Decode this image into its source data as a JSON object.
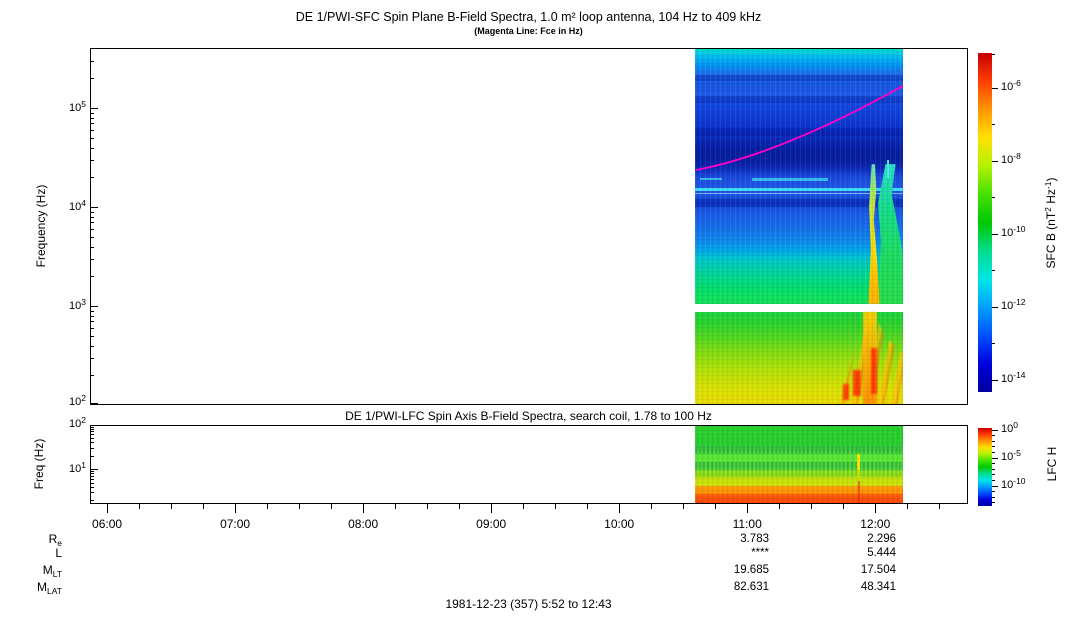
{
  "header": {
    "title": "DE 1/PWI-SFC  Spin Plane B-Field Spectra, 1.0 m² loop antenna, 104 Hz to 409 kHz",
    "subtitle": "(Magenta Line: Fce in Hz)"
  },
  "footer": {
    "text": "1981-12-23 (357) 5:52 to 12:43"
  },
  "x_axis": {
    "hour_labels": [
      "06:00",
      "07:00",
      "08:00",
      "09:00",
      "10:00",
      "11:00",
      "12:00"
    ],
    "time_range": [
      "05:52",
      "12:43"
    ],
    "minor_tick_interval_min": 15
  },
  "orbit_table": {
    "value_columns_at": [
      "11:00",
      "12:00"
    ],
    "rows": [
      {
        "label": "R",
        "sub": "e",
        "values": [
          "3.783",
          "2.296"
        ]
      },
      {
        "label": "L",
        "sub": "",
        "values": [
          "****",
          "5.444"
        ]
      },
      {
        "label": "M",
        "sub": "LT",
        "values": [
          "19.685",
          "17.504"
        ]
      },
      {
        "label": "M",
        "sub": "LAT",
        "values": [
          "82.631",
          "48.341"
        ]
      }
    ]
  },
  "colors": {
    "background": "#ffffff",
    "frame": "#000000",
    "fce_line": "#ff00c8",
    "rainbow_top_to_bottom": [
      "#c80000",
      "#ff3c00",
      "#ff9600",
      "#ffe100",
      "#b4f000",
      "#46e100",
      "#00c800",
      "#00dc8c",
      "#00e6e6",
      "#00a0ff",
      "#0050ff",
      "#0000dc",
      "#0000a0"
    ]
  },
  "chart_data": [
    {
      "type": "heatmap",
      "title": "DE 1/PWI-SFC  Spin Plane B-Field Spectra, 1.0 m² loop antenna, 104 Hz to 409 kHz",
      "subtitle": "(Magenta Line: Fce in Hz)",
      "ylabel": "Frequency (Hz)",
      "yscale": "log",
      "ylim_hz": [
        104,
        409000
      ],
      "ytick_exponents": [
        2,
        3,
        4,
        5
      ],
      "x_time_range": [
        "05:52",
        "12:43"
      ],
      "data_time_range": [
        "10:36",
        "12:13"
      ],
      "colorbar": {
        "label_parts": [
          "SFC B (nT",
          {
            "sup": "2"
          },
          " Hz",
          {
            "sup": "-1"
          },
          ")"
        ],
        "tick_exponents_labeled": [
          -6,
          -8,
          -10,
          -12,
          -14
        ],
        "tick_exponents_minor": [
          -5,
          -7,
          -9,
          -11,
          -13
        ]
      },
      "features": {
        "bands": [
          {
            "freq_hz": [
              200000,
              409000
            ],
            "appearance": "cyan band, ~1e-12 nT2/Hz"
          },
          {
            "freq_hz": [
              20000,
              200000
            ],
            "appearance": "blue, weak ~1e-13"
          },
          {
            "freq_hz": [
              30000,
              60000
            ],
            "appearance": "dark navy minimum ~1e-14"
          },
          {
            "freq_hz": [
              15000,
              19000
            ],
            "appearance": "narrow bright cyan emission lines"
          },
          {
            "freq_hz": [
              1100,
              10000
            ],
            "appearance": "blue rising to cyan-green toward low freq"
          },
          {
            "freq_hz": [
              870,
              1100
            ],
            "appearance": "white receiver gap (no data)"
          },
          {
            "freq_hz": [
              104,
              870
            ],
            "appearance": "green grading to strong yellow ~1e-8"
          }
        ],
        "enhancement": {
          "time": "11:50-12:10",
          "desc": "funnel-shaped burst, green/yellow/orange with red cores reaching ~20 kHz"
        }
      },
      "overlay_line": {
        "name": "Fce",
        "color": "#ff00c8",
        "points": [
          {
            "t": "10:36",
            "hz": 24000
          },
          {
            "t": "11:20",
            "hz": 47000
          },
          {
            "t": "12:13",
            "hz": 170000
          }
        ]
      }
    },
    {
      "type": "heatmap",
      "title": "DE 1/PWI-LFC  Spin Axis B-Field Spectra, search coil, 1.78 to 100 Hz",
      "ylabel": "Freq (Hz)",
      "yscale": "log",
      "ylim_hz": [
        1.78,
        100
      ],
      "ytick_exponents": [
        1,
        2
      ],
      "data_time_range": [
        "10:36",
        "12:13"
      ],
      "colorbar": {
        "label_parts": [
          "LFC H"
        ],
        "tick_exponents_labeled": [
          0,
          -5,
          -10
        ],
        "tick_exponents_minor": [
          -1,
          -2,
          -3,
          -4,
          -6,
          -7,
          -8,
          -9,
          -11,
          -12,
          -13
        ]
      },
      "features": {
        "bands": [
          {
            "freq_hz": [
              30,
              100
            ],
            "appearance": "green"
          },
          {
            "freq_hz": [
              10,
              30
            ],
            "appearance": "light green, striped"
          },
          {
            "freq_hz": [
              4.5,
              10
            ],
            "appearance": "yellow-green"
          },
          {
            "freq_hz": [
              2.8,
              4.5
            ],
            "appearance": "orange"
          },
          {
            "freq_hz": [
              1.78,
              2.8
            ],
            "appearance": "red-orange, strongest"
          }
        ],
        "spike": {
          "time": "11:55",
          "desc": "bright yellow vertical line near 10-30 Hz"
        }
      }
    }
  ]
}
